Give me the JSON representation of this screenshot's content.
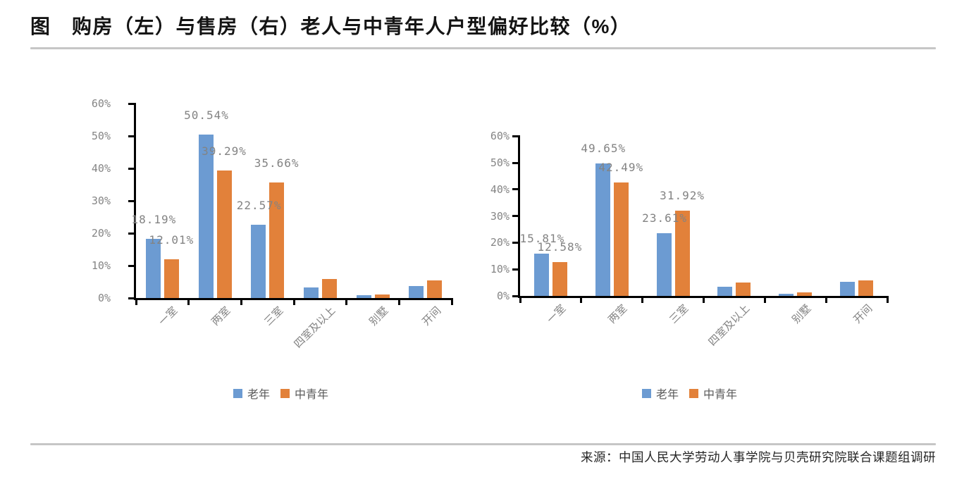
{
  "page": {
    "figure_title": "图　购房（左）与售房（右）老人与中青年人户型偏好比较（%）",
    "source": "来源：中国人民大学劳动人事学院与贝壳研究院联合课题组调研"
  },
  "colors": {
    "elderly_blue": "#6C9BD2",
    "young_orange": "#E2813A",
    "data_label_gray": "#838383",
    "axis_black": "#000000",
    "divider_gray": "#c6c6c6"
  },
  "legend": {
    "elderly": "老年",
    "young": "中青年"
  },
  "chart_data": [
    {
      "type": "bar",
      "position": "left",
      "subject": "购房",
      "categories": [
        "一室",
        "两室",
        "三室",
        "四室及以上",
        "别墅",
        "开间"
      ],
      "series": [
        {
          "name": "老年",
          "color": "#6C9BD2",
          "values": [
            18.19,
            50.54,
            22.57,
            3.2,
            0.8,
            3.7
          ],
          "labels": [
            "18.19%",
            "50.54%",
            "22.57%",
            "",
            "",
            ""
          ]
        },
        {
          "name": "中青年",
          "color": "#E2813A",
          "values": [
            12.01,
            39.29,
            35.66,
            5.9,
            1.1,
            5.4
          ],
          "labels": [
            "12.01%",
            "39.29%",
            "35.66%",
            "",
            "",
            ""
          ]
        }
      ],
      "ylim": [
        0,
        60
      ],
      "yticks": [
        "0%",
        "10%",
        "20%",
        "30%",
        "40%",
        "50%",
        "60%"
      ],
      "grid": false,
      "legend_position": "bottom"
    },
    {
      "type": "bar",
      "position": "right",
      "subject": "售房",
      "categories": [
        "一室",
        "两室",
        "三室",
        "四室及以上",
        "别墅",
        "开间"
      ],
      "series": [
        {
          "name": "老年",
          "color": "#6C9BD2",
          "values": [
            15.81,
            49.65,
            23.61,
            3.4,
            0.9,
            5.3
          ],
          "labels": [
            "15.81%",
            "49.65%",
            "23.61%",
            "",
            "",
            ""
          ]
        },
        {
          "name": "中青年",
          "color": "#E2813A",
          "values": [
            12.58,
            42.49,
            31.92,
            4.9,
            1.2,
            5.8
          ],
          "labels": [
            "12.58%",
            "42.49%",
            "31.92%",
            "",
            "",
            ""
          ]
        }
      ],
      "ylim": [
        0,
        60
      ],
      "yticks": [
        "0%",
        "10%",
        "20%",
        "30%",
        "40%",
        "50%",
        "60%"
      ],
      "grid": false,
      "legend_position": "bottom"
    }
  ]
}
